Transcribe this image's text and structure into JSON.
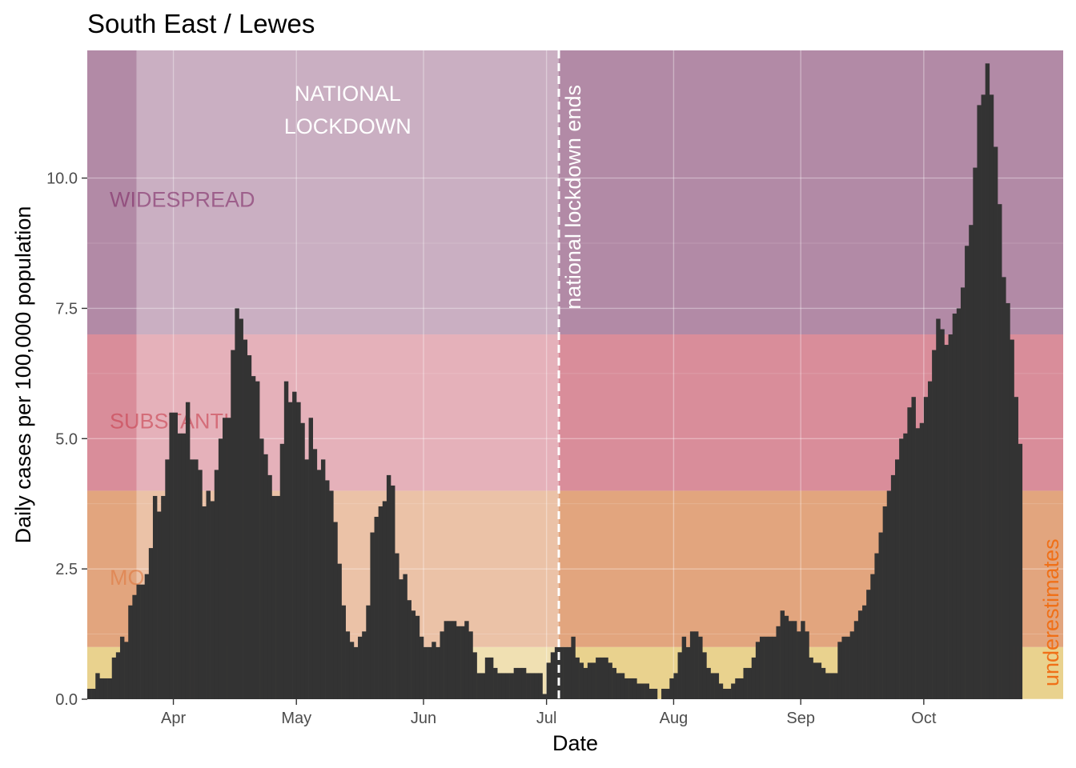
{
  "chart_data": {
    "type": "bar",
    "title": "South East / Lewes",
    "xlabel": "Date",
    "ylabel": "Daily cases per 100,000 population",
    "x_start_date": "2020-03-11",
    "x_end_date": "2020-11-04",
    "ylim": [
      0,
      12.45
    ],
    "y_ticks": [
      0.0,
      2.5,
      5.0,
      7.5,
      10.0
    ],
    "y_tick_labels": [
      "0.0",
      "2.5",
      "5.0",
      "7.5",
      "10.0"
    ],
    "x_ticks": [
      {
        "date": "2020-04-01",
        "label": "Apr"
      },
      {
        "date": "2020-05-01",
        "label": "May"
      },
      {
        "date": "2020-06-01",
        "label": "Jun"
      },
      {
        "date": "2020-07-01",
        "label": "Jul"
      },
      {
        "date": "2020-08-01",
        "label": "Aug"
      },
      {
        "date": "2020-09-01",
        "label": "Sep"
      },
      {
        "date": "2020-10-01",
        "label": "Oct"
      }
    ],
    "grid": true,
    "bands": [
      {
        "name": "MO",
        "from": 1,
        "to": 4,
        "color": "#e2a57e",
        "label_color": "#e07840"
      },
      {
        "name": "SUBSTANTI",
        "from": 4,
        "to": 7,
        "color": "#d98d9a",
        "label_color": "#c8404f"
      },
      {
        "name": "WIDESPREAD",
        "from": 7,
        "to": 12.45,
        "color": "#b28aa6",
        "label_color": "#7e2a65"
      },
      {
        "name": "",
        "from": 0,
        "to": 1,
        "color": "#e9d28e",
        "label_color": ""
      }
    ],
    "lockdown": {
      "start": "2020-03-23",
      "end": "2020-07-04",
      "label_line1": "NATIONAL",
      "label_line2": "LOCKDOWN"
    },
    "lockdown_end_label": "national lockdown ends",
    "underestimates_label": "underestimates",
    "values": [
      0.2,
      0.2,
      0.5,
      0.4,
      0.4,
      0.4,
      0.8,
      0.9,
      1.2,
      1.1,
      1.8,
      2.0,
      2.2,
      2.2,
      2.4,
      2.9,
      3.9,
      3.6,
      3.9,
      4.6,
      5.5,
      5.5,
      5.1,
      5.1,
      5.7,
      4.6,
      4.6,
      4.4,
      3.7,
      4.0,
      3.8,
      4.4,
      5.0,
      5.4,
      5.4,
      6.7,
      7.5,
      7.3,
      6.9,
      6.6,
      6.2,
      6.1,
      5.0,
      4.7,
      4.3,
      3.9,
      3.9,
      4.9,
      6.1,
      5.7,
      5.9,
      5.7,
      5.3,
      4.6,
      5.4,
      4.8,
      4.4,
      4.6,
      4.2,
      4.0,
      3.4,
      2.6,
      1.8,
      1.3,
      1.1,
      1.0,
      1.2,
      1.3,
      1.8,
      3.2,
      3.5,
      3.7,
      3.8,
      4.3,
      4.1,
      2.8,
      2.3,
      2.4,
      1.9,
      1.7,
      1.6,
      1.2,
      1.0,
      1.0,
      1.1,
      1.0,
      1.3,
      1.5,
      1.5,
      1.5,
      1.4,
      1.4,
      1.5,
      1.3,
      0.9,
      0.5,
      0.5,
      0.8,
      0.8,
      0.6,
      0.5,
      0.5,
      0.5,
      0.5,
      0.6,
      0.6,
      0.6,
      0.5,
      0.5,
      0.5,
      0.5,
      0.1,
      0.7,
      0.9,
      1.0,
      1.0,
      1.0,
      1.0,
      1.2,
      0.8,
      0.7,
      0.6,
      0.7,
      0.7,
      0.8,
      0.8,
      0.8,
      0.7,
      0.6,
      0.5,
      0.5,
      0.4,
      0.4,
      0.4,
      0.3,
      0.3,
      0.3,
      0.2,
      0.2,
      0.0,
      0.2,
      0.2,
      0.4,
      0.5,
      0.9,
      1.2,
      1.0,
      1.3,
      1.3,
      1.2,
      0.9,
      0.6,
      0.5,
      0.5,
      0.3,
      0.2,
      0.2,
      0.3,
      0.4,
      0.4,
      0.6,
      0.6,
      0.8,
      1.1,
      1.2,
      1.2,
      1.2,
      1.2,
      1.4,
      1.7,
      1.6,
      1.5,
      1.5,
      1.3,
      1.5,
      1.3,
      0.8,
      0.7,
      0.7,
      0.6,
      0.5,
      0.5,
      0.5,
      1.1,
      1.2,
      1.2,
      1.3,
      1.5,
      1.7,
      1.8,
      2.1,
      2.4,
      2.8,
      3.2,
      3.7,
      4.0,
      4.3,
      4.6,
      5.0,
      5.1,
      5.6,
      5.8,
      5.2,
      5.3,
      5.8,
      6.1,
      6.7,
      7.3,
      7.1,
      6.8,
      7.0,
      7.4,
      7.5,
      7.9,
      8.7,
      9.1,
      10.2,
      11.4,
      11.6,
      12.2,
      11.6,
      10.6,
      9.5,
      8.1,
      7.6,
      6.9,
      5.8,
      4.9
    ]
  }
}
